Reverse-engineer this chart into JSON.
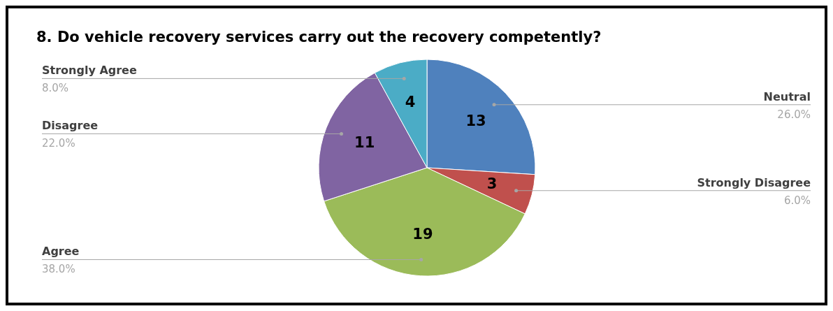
{
  "chart_data": {
    "type": "pie",
    "title": "8. Do vehicle recovery services carry out the recovery competently?",
    "categories": [
      "Neutral",
      "Strongly Disagree",
      "Agree",
      "Disagree",
      "Strongly Agree"
    ],
    "values": [
      13,
      3,
      19,
      11,
      4
    ],
    "colors": [
      "#4f81bd",
      "#c0504d",
      "#9bbb59",
      "#8064a2",
      "#4bacc6"
    ],
    "data_labels": true,
    "annotations": [
      {
        "text": "26.0%",
        "x": "Neutral"
      },
      {
        "text": "6.0%",
        "x": "Strongly Disagree"
      },
      {
        "text": "38.0%",
        "x": "Agree"
      },
      {
        "text": "22.0%",
        "x": "Disagree"
      },
      {
        "text": "8.0%",
        "x": "Strongly Agree"
      }
    ]
  }
}
